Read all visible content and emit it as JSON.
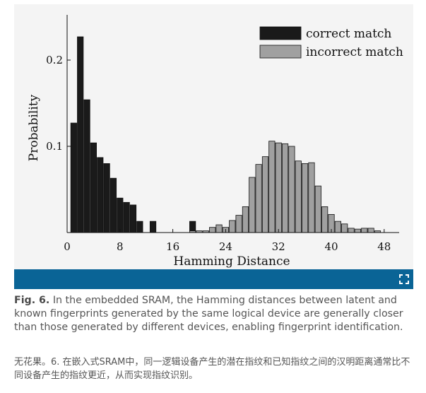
{
  "chart_data": {
    "type": "bar",
    "xlabel": "Hamming Distance",
    "ylabel": "Probability",
    "xlim": [
      0,
      50
    ],
    "ylim": [
      0,
      0.25
    ],
    "x_ticks": [
      0,
      8,
      16,
      24,
      32,
      40,
      48
    ],
    "y_ticks": [
      0.1,
      0.2
    ],
    "x_tick_labels": [
      "0",
      "8",
      "16",
      "24",
      "32",
      "40",
      "48"
    ],
    "y_tick_labels": [
      "0.1",
      "0.2"
    ],
    "legend_position": "top-right",
    "series": [
      {
        "name": "correct match",
        "color": "#1a1a1a",
        "x": [
          1,
          2,
          3,
          4,
          5,
          6,
          7,
          8,
          9,
          10,
          11,
          13,
          19
        ],
        "y": [
          0.127,
          0.227,
          0.154,
          0.104,
          0.087,
          0.08,
          0.063,
          0.04,
          0.035,
          0.032,
          0.013,
          0.013,
          0.013
        ]
      },
      {
        "name": "incorrect match",
        "color": "#a0a0a0",
        "x": [
          19,
          20,
          21,
          22,
          23,
          24,
          25,
          26,
          27,
          28,
          29,
          30,
          31,
          32,
          33,
          34,
          35,
          36,
          37,
          38,
          39,
          40,
          41,
          42,
          43,
          44,
          45,
          46,
          47
        ],
        "y": [
          0.002,
          0.002,
          0.002,
          0.006,
          0.009,
          0.006,
          0.014,
          0.02,
          0.03,
          0.064,
          0.079,
          0.088,
          0.106,
          0.104,
          0.103,
          0.1,
          0.083,
          0.08,
          0.081,
          0.054,
          0.03,
          0.021,
          0.013,
          0.01,
          0.005,
          0.004,
          0.005,
          0.005,
          0.002
        ]
      }
    ]
  },
  "figure_bar": {
    "color": "#0a6496",
    "expand_icon": "expand-icon"
  },
  "caption": {
    "label": "Fig. 6.",
    "text": " In the embedded SRAM, the Hamming distances between latent and known fingerprints generated by the same logical device are generally closer than those generated by different devices, enabling fingerprint identification.",
    "translation": "无花果。6. 在嵌入式SRAM中，同一逻辑设备产生的潜在指纹和已知指纹之间的汉明距离通常比不同设备产生的指纹更近，从而实现指纹识别。"
  }
}
